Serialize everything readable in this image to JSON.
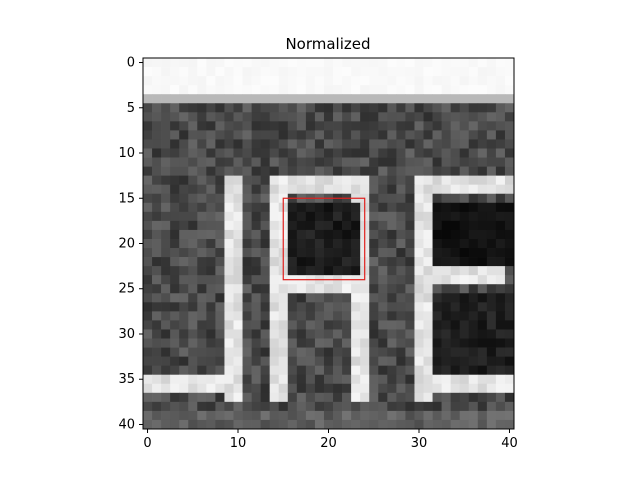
{
  "chart_data": {
    "type": "heatmap",
    "title": "Normalized",
    "xlabel": "",
    "ylabel": "",
    "grid": false,
    "xlim": [
      -0.5,
      40.5
    ],
    "ylim": [
      40.5,
      -0.5
    ],
    "x_ticks": [
      0,
      10,
      20,
      30,
      40
    ],
    "x_tick_labels": [
      "0",
      "10",
      "20",
      "30",
      "40"
    ],
    "y_ticks": [
      0,
      5,
      10,
      15,
      20,
      25,
      30,
      35,
      40
    ],
    "y_tick_labels": [
      "0",
      "5",
      "10",
      "15",
      "20",
      "25",
      "30",
      "35",
      "40"
    ],
    "colormap": "gray",
    "image_rows": 41,
    "image_cols": 41,
    "content_description_values": "grayscale crop of dark background with white letter strokes",
    "highlight_box": {
      "x0": 15,
      "y0": 15,
      "x1": 24,
      "y1": 24,
      "color": "#e0201e"
    }
  }
}
